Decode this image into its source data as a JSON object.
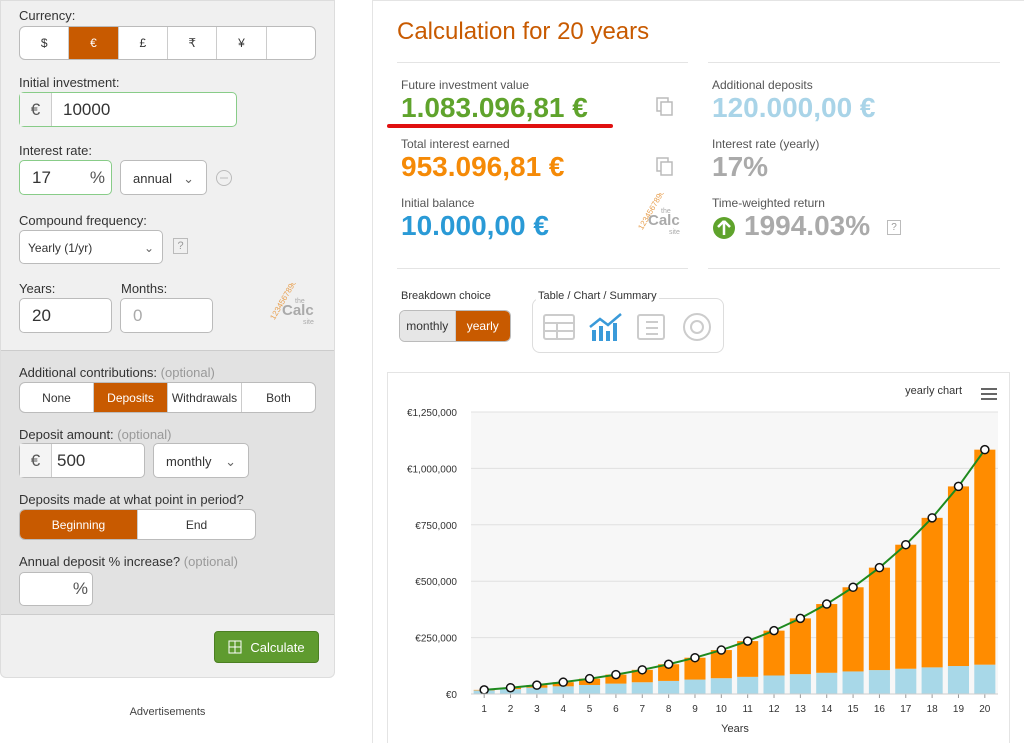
{
  "form": {
    "currency_label": "Currency:",
    "currencies": [
      "$",
      "€",
      "£",
      "₹",
      "¥"
    ],
    "initial_label": "Initial investment:",
    "currency_symbol": "€",
    "initial_value": "10000",
    "rate_label": "Interest rate:",
    "rate_value": "17",
    "percent": "%",
    "rate_period": "annual",
    "compound_label": "Compound frequency:",
    "compound_value": "Yearly (1/yr)",
    "help": "?",
    "years_label": "Years:",
    "years_value": "20",
    "months_label": "Months:",
    "months_value": "0",
    "contrib_label": "Additional contributions:",
    "optional": "(optional)",
    "contrib_options": [
      "None",
      "Deposits",
      "Withdrawals",
      "Both"
    ],
    "deposit_label": "Deposit amount:",
    "deposit_value": "500",
    "deposit_freq": "monthly",
    "timing_label": "Deposits made at what point in period?",
    "timing_options": [
      "Beginning",
      "End"
    ],
    "increase_label": "Annual deposit % increase?",
    "calculate": "Calculate",
    "ads": "Advertisements"
  },
  "logo": {
    "digits": "1234567890",
    "small": "the",
    "name": "Calc",
    "sub": "site"
  },
  "results": {
    "title": "Calculation for 20 years",
    "items": [
      {
        "label": "Future investment value",
        "value": "1.083.096,81 €"
      },
      {
        "label": "Total interest earned",
        "value": "953.096,81 €"
      },
      {
        "label": "Initial balance",
        "value": "10.000,00 €"
      },
      {
        "label": "Additional deposits",
        "value": "120.000,00 €"
      },
      {
        "label": "Interest rate (yearly)",
        "value": "17%"
      },
      {
        "label": "Time-weighted return",
        "value": "1994.03%"
      }
    ],
    "breakdown_label": "Breakdown choice",
    "breakdown_options": [
      "monthly",
      "yearly"
    ],
    "view_label": "Table / Chart / Summary"
  },
  "chart_data": {
    "type": "stacked-bar-line",
    "menu_label": "yearly chart",
    "x_label": "Years",
    "categories": [
      "1",
      "2",
      "3",
      "4",
      "5",
      "6",
      "7",
      "8",
      "9",
      "10",
      "11",
      "12",
      "13",
      "14",
      "15",
      "16",
      "17",
      "18",
      "19",
      "20"
    ],
    "series": [
      {
        "color": "#a8d8e8",
        "values": [
          16000,
          22000,
          28000,
          34000,
          40000,
          46000,
          52000,
          58000,
          64000,
          70000,
          76000,
          82000,
          88000,
          94000,
          100000,
          106000,
          112000,
          118000,
          124000,
          130000
        ]
      },
      {
        "color": "#ff8c00",
        "values": [
          2252.5,
          5907.93,
          11204.78,
          18422.09,
          27886.35,
          39979.53,
          55148.55,
          73916.3,
          96894.57,
          124799.15,
          158467.51,
          198879.49,
          247181.5,
          304714.86,
          373048.89,
          454019.7,
          549775.55,
          662829.89,
          796123.47,
          953096.81
        ]
      },
      {
        "type": "line",
        "color": "#1e8a1e",
        "values": [
          18252.5,
          27907.93,
          39204.78,
          52422.09,
          67886.35,
          85979.53,
          107148.55,
          131916.3,
          160894.57,
          194799.15,
          234467.51,
          280879.49,
          335181.5,
          398714.86,
          473048.89,
          560019.7,
          661775.55,
          780829.89,
          920123.47,
          1083096.81
        ]
      }
    ],
    "ylim": [
      0,
      1250000
    ],
    "yticks": [
      {
        "value": 0,
        "label": "€0"
      },
      {
        "value": 250000,
        "label": "€250,000"
      },
      {
        "value": 500000,
        "label": "€500,000"
      },
      {
        "value": 750000,
        "label": "€750,000"
      },
      {
        "value": 1000000,
        "label": "€1,000,000"
      },
      {
        "value": 1250000,
        "label": "€1,250,000"
      }
    ],
    "grid": true
  }
}
